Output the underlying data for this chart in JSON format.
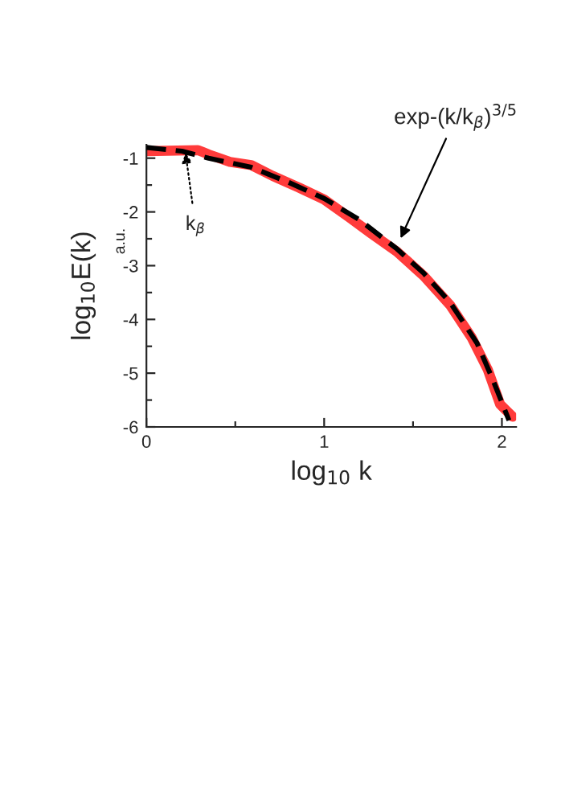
{
  "chart_data": {
    "type": "line",
    "xlabel": "log$_{10}$ k",
    "ylabel": "log$_{10}$E(k)",
    "x": [
      0,
      0.29,
      0.35,
      0.47,
      0.59,
      0.71,
      0.86,
      1.0,
      1.14,
      1.26,
      1.41,
      1.56,
      1.71,
      1.83,
      1.92,
      1.99,
      2.06
    ],
    "series": [
      {
        "color": "#ff3b3b",
        "line_style": "solid",
        "values": [
          -0.87,
          -0.85,
          -0.93,
          -1.07,
          -1.13,
          -1.33,
          -1.55,
          -1.77,
          -2.1,
          -2.39,
          -2.74,
          -3.19,
          -3.74,
          -4.34,
          -4.93,
          -5.58,
          -5.81
        ]
      },
      {
        "color": "#000000",
        "line_style": "dashed",
        "x": [
          0,
          0.2,
          0.35,
          0.59,
          0.8,
          1.0,
          1.2,
          1.41,
          1.56,
          1.71,
          1.86,
          1.95,
          2.04
        ],
        "values": [
          -0.8,
          -0.87,
          -1.0,
          -1.17,
          -1.45,
          -1.75,
          -2.15,
          -2.69,
          -3.14,
          -3.69,
          -4.44,
          -5.13,
          -5.88
        ]
      }
    ],
    "annotations": [
      {
        "text": "exp-(k/k$_{β}$)$^{3/5}$",
        "x": 1.43,
        "y": -2.49
      },
      {
        "text": "k$_{β}$",
        "x": 0.22,
        "y": -0.9
      },
      "a.u."
    ],
    "xlim": [
      0,
      2.08
    ],
    "ylim": [
      -6,
      -0.75
    ],
    "xticks": [
      0,
      {
        "value": 0.5,
        "label": null
      },
      1,
      {
        "value": 1.5,
        "label": null
      },
      2
    ],
    "yticks": [
      {
        "value": -6,
        "label": "-6"
      },
      {
        "value": -5.5,
        "label": null
      },
      {
        "value": -5,
        "label": "-5"
      },
      {
        "value": -4.5,
        "label": null
      },
      {
        "value": -4,
        "label": "-4"
      },
      {
        "value": -3.5,
        "label": null
      },
      {
        "value": -3,
        "label": "-3"
      },
      {
        "value": -2.5,
        "label": null
      },
      {
        "value": -2,
        "label": "-2"
      },
      {
        "value": -1.5,
        "label": null
      },
      {
        "value": -1,
        "label": "-1"
      }
    ],
    "grid": false,
    "legend": false
  }
}
